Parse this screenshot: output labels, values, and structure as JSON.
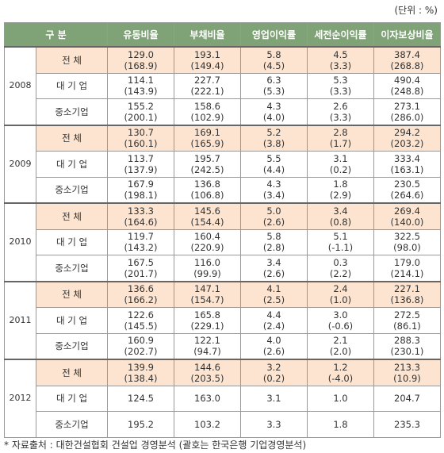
{
  "unit": "(단위 : %)",
  "table": {
    "header": [
      "구 분",
      "유동비율",
      "부채비율",
      "영업이익률",
      "세전순이익률",
      "이자보상비율"
    ],
    "years": [
      {
        "year": "2008",
        "rows": [
          {
            "label": "전 체",
            "cells": [
              [
                "129.0",
                "(168.9)"
              ],
              [
                "193.1",
                "(149.4)"
              ],
              [
                "5.8",
                "(4.5)"
              ],
              [
                "4.5",
                "(3.3)"
              ],
              [
                "387.4",
                "(268.8)"
              ]
            ]
          },
          {
            "label": "대 기 업",
            "cells": [
              [
                "114.1",
                "(143.9)"
              ],
              [
                "227.7",
                "(222.1)"
              ],
              [
                "6.3",
                "(5.3)"
              ],
              [
                "5.3",
                "(3.3)"
              ],
              [
                "490.4",
                "(248.8)"
              ]
            ]
          },
          {
            "label": "중소기업",
            "cells": [
              [
                "155.2",
                "(200.1)"
              ],
              [
                "158.6",
                "(102.9)"
              ],
              [
                "4.3",
                "(4.0)"
              ],
              [
                "2.6",
                "(3.3)"
              ],
              [
                "273.1",
                "(286.0)"
              ]
            ]
          }
        ]
      },
      {
        "year": "2009",
        "rows": [
          {
            "label": "전 체",
            "cells": [
              [
                "130.7",
                "(160.1)"
              ],
              [
                "169.1",
                "(165.9)"
              ],
              [
                "5.2",
                "(3.8)"
              ],
              [
                "2.8",
                "(1.7)"
              ],
              [
                "294.2",
                "(203.2)"
              ]
            ]
          },
          {
            "label": "대 기 업",
            "cells": [
              [
                "113.7",
                "(137.9)"
              ],
              [
                "195.7",
                "(242.5)"
              ],
              [
                "5.5",
                "(4.4)"
              ],
              [
                "3.1",
                "(0.2)"
              ],
              [
                "333.4",
                "(163.1)"
              ]
            ]
          },
          {
            "label": "중소기업",
            "cells": [
              [
                "167.9",
                "(198.1)"
              ],
              [
                "136.8",
                "(106.8)"
              ],
              [
                "4.3",
                "(3.4)"
              ],
              [
                "1.8",
                "(2.9)"
              ],
              [
                "230.5",
                "(264.6)"
              ]
            ]
          }
        ]
      },
      {
        "year": "2010",
        "rows": [
          {
            "label": "전 체",
            "cells": [
              [
                "133.3",
                "(164.6)"
              ],
              [
                "145.6",
                "(154.4)"
              ],
              [
                "5.0",
                "(2.6)"
              ],
              [
                "3.4",
                "(0.8)"
              ],
              [
                "269.4",
                "(140.0)"
              ]
            ]
          },
          {
            "label": "대 기 업",
            "cells": [
              [
                "119.7",
                "(143.2)"
              ],
              [
                "160.4",
                "(220.9)"
              ],
              [
                "5.8",
                "(2.8)"
              ],
              [
                "5.1",
                "(-1.1)"
              ],
              [
                "322.5",
                "(98.0)"
              ]
            ]
          },
          {
            "label": "중소기업",
            "cells": [
              [
                "167.5",
                "(201.7)"
              ],
              [
                "116.0",
                "(99.9)"
              ],
              [
                "3.4",
                "(2.6)"
              ],
              [
                "0.3",
                "(2.2)"
              ],
              [
                "179.0",
                "(214.1)"
              ]
            ]
          }
        ]
      },
      {
        "year": "2011",
        "rows": [
          {
            "label": "전 체",
            "cells": [
              [
                "136.6",
                "(166.2)"
              ],
              [
                "147.1",
                "(154.7)"
              ],
              [
                "4.1",
                "(2.5)"
              ],
              [
                "2.4",
                "(1.0)"
              ],
              [
                "227.1",
                "(136.8)"
              ]
            ]
          },
          {
            "label": "대 기 업",
            "cells": [
              [
                "122.6",
                "(145.5)"
              ],
              [
                "165.8",
                "(229.1)"
              ],
              [
                "4.4",
                "(2.4)"
              ],
              [
                "3.0",
                "(-0.6)"
              ],
              [
                "272.5",
                "(86.1)"
              ]
            ]
          },
          {
            "label": "중소기업",
            "cells": [
              [
                "160.9",
                "(202.7)"
              ],
              [
                "122.1",
                "(94.7)"
              ],
              [
                "4.0",
                "(2.6)"
              ],
              [
                "2.1",
                "(2.0)"
              ],
              [
                "288.3",
                "(230.1)"
              ]
            ]
          }
        ]
      },
      {
        "year": "2012",
        "rows": [
          {
            "label": "전 체",
            "cells": [
              [
                "139.9",
                "(138.4)"
              ],
              [
                "144.6",
                "(203.5)"
              ],
              [
                "3.2",
                "(0.2)"
              ],
              [
                "1.2",
                "(-4.0)"
              ],
              [
                "213.3",
                "(10.9)"
              ]
            ]
          },
          {
            "label": "대 기 업",
            "cells": [
              [
                "124.5"
              ],
              [
                "163.0"
              ],
              [
                "3.1"
              ],
              [
                "1.0"
              ],
              [
                "204.7"
              ]
            ]
          },
          {
            "label": "중소기업",
            "cells": [
              [
                "195.2"
              ],
              [
                "103.2"
              ],
              [
                "3.3"
              ],
              [
                "1.8"
              ],
              [
                "235.3"
              ]
            ]
          }
        ]
      }
    ]
  },
  "footer": "* 자료출처 : 대한건설협회 건설업 경영분석 (괄호는 한국은행 기업경영분석)"
}
